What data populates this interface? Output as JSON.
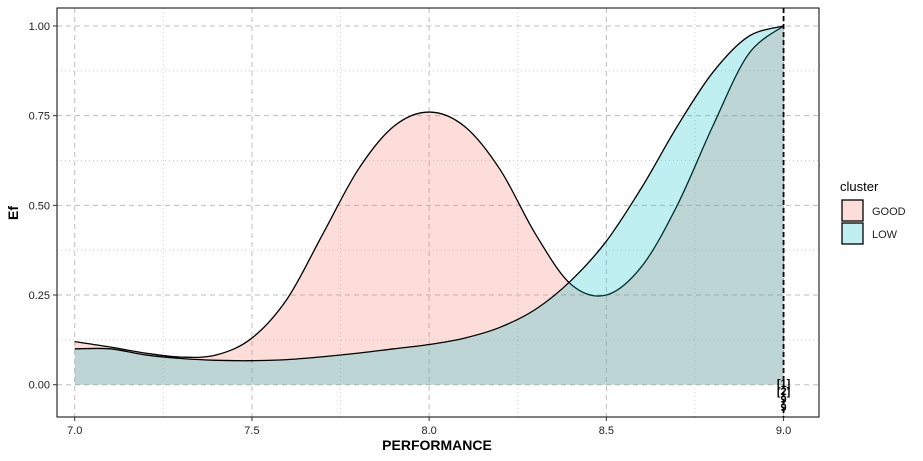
{
  "chart_data": {
    "type": "area",
    "xlabel": "PERFORMANCE",
    "ylabel": "Ef",
    "xlim": [
      6.95,
      9.1
    ],
    "ylim": [
      -0.09,
      1.05
    ],
    "xticks": [
      7.0,
      7.5,
      8.0,
      8.5,
      9.0
    ],
    "xtick_labels": [
      "7.0",
      "7.5",
      "8.0",
      "8.5",
      "9.0"
    ],
    "yticks": [
      0.0,
      0.25,
      0.5,
      0.75,
      1.0
    ],
    "ytick_labels": [
      "0.00",
      "0.25",
      "0.50",
      "0.75",
      "1.00"
    ],
    "grid": true,
    "legend": {
      "title": "cluster",
      "position": "right"
    },
    "series": [
      {
        "name": "GOOD",
        "color": "#F8766D",
        "x": [
          7.0,
          7.1,
          7.2,
          7.3,
          7.4,
          7.5,
          7.6,
          7.7,
          7.8,
          7.9,
          8.0,
          8.1,
          8.2,
          8.3,
          8.4,
          8.5,
          8.6,
          8.7,
          8.8,
          8.9,
          9.0
        ],
        "y": [
          0.12,
          0.105,
          0.088,
          0.077,
          0.083,
          0.13,
          0.24,
          0.42,
          0.6,
          0.72,
          0.76,
          0.72,
          0.6,
          0.42,
          0.28,
          0.25,
          0.33,
          0.5,
          0.72,
          0.92,
          1.0
        ]
      },
      {
        "name": "LOW",
        "color": "#00BFC4",
        "x": [
          7.0,
          7.1,
          7.2,
          7.3,
          7.4,
          7.5,
          7.6,
          7.7,
          7.8,
          7.9,
          8.0,
          8.1,
          8.2,
          8.3,
          8.4,
          8.5,
          8.6,
          8.7,
          8.8,
          8.9,
          9.0
        ],
        "y": [
          0.1,
          0.1,
          0.083,
          0.073,
          0.068,
          0.067,
          0.07,
          0.078,
          0.088,
          0.1,
          0.112,
          0.13,
          0.16,
          0.21,
          0.29,
          0.4,
          0.55,
          0.72,
          0.87,
          0.97,
          1.0
        ]
      }
    ],
    "vline": {
      "x": 9.0,
      "style": "dashed"
    },
    "marker_labels": [
      "[1]",
      "[2]",
      "9",
      "9"
    ]
  }
}
